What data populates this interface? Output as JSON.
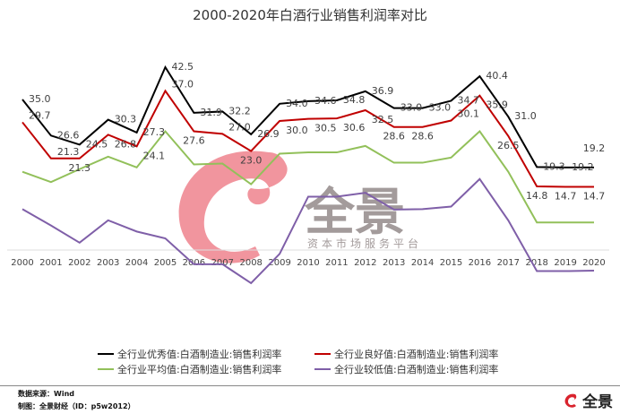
{
  "chart_data": {
    "type": "line",
    "title": "2000-2020年白酒行业销售利润率对比",
    "xlabel": "",
    "ylabel": "",
    "x": [
      "2000",
      "2001",
      "2002",
      "2003",
      "2004",
      "2005",
      "2006",
      "2007",
      "2008",
      "2009",
      "2010",
      "2011",
      "2012",
      "2013",
      "2014",
      "2015",
      "2016",
      "2017",
      "2018",
      "2019",
      "2020"
    ],
    "ylim": [
      -10,
      50
    ],
    "grid": false,
    "legend": "bottom",
    "series": [
      {
        "name": "全行业优秀值:白酒制造业:销售利润率",
        "color": "#000000",
        "labels": true,
        "values": [
          35.0,
          26.6,
          24.5,
          30.3,
          27.3,
          42.5,
          31.9,
          32.2,
          26.9,
          34.0,
          34.6,
          34.8,
          36.9,
          33.0,
          33.0,
          34.7,
          40.4,
          31.0,
          19.3,
          19.2,
          19.2
        ]
      },
      {
        "name": "全行业良好值:白酒制造业:销售利润率",
        "color": "#c00000",
        "labels": true,
        "values": [
          29.7,
          21.3,
          21.3,
          26.8,
          24.1,
          37.0,
          27.6,
          27.0,
          23.0,
          30.0,
          30.5,
          30.6,
          32.5,
          28.6,
          28.6,
          30.1,
          35.9,
          26.5,
          14.8,
          14.7,
          14.7
        ]
      },
      {
        "name": "全行业平均值:白酒制造业:销售利润率",
        "color": "#92c05a",
        "labels": false,
        "values": [
          18.2,
          15.8,
          18.8,
          21.7,
          19.2,
          27.6,
          19.9,
          20.1,
          15.3,
          22.4,
          22.7,
          22.7,
          24.2,
          20.3,
          20.3,
          21.5,
          27.6,
          18.2,
          6.4,
          6.4,
          6.4
        ]
      },
      {
        "name": "全行业较低值:白酒制造业:销售利润率",
        "color": "#7f5fa8",
        "labels": false,
        "values": [
          9.5,
          5.7,
          1.7,
          6.9,
          4.3,
          2.7,
          -3.3,
          -3.3,
          -7.7,
          -0.9,
          12.4,
          12.4,
          13.3,
          9.4,
          9.5,
          10.1,
          16.5,
          6.9,
          -4.9,
          -4.9,
          -4.8
        ]
      }
    ]
  },
  "watermark": {
    "brand": "全景",
    "tagline": "资本市场服务平台",
    "logo_color": "#f08a94"
  },
  "footer": {
    "source": "数据来源：Wind",
    "credit": "制图：全景财经（ID：p5w2012）",
    "brand": "全景"
  }
}
